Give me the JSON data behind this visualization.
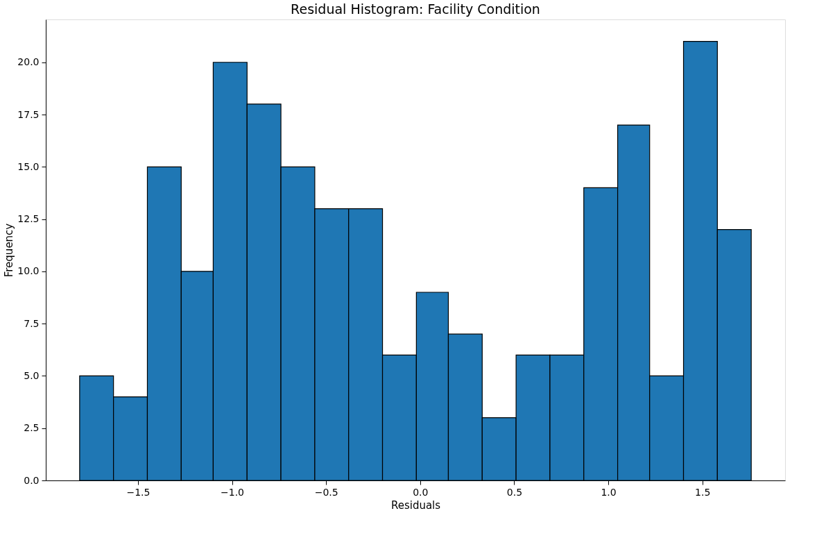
{
  "chart_data": {
    "type": "histogram",
    "title": "Residual Histogram: Facility Condition",
    "xlabel": "Residuals",
    "ylabel": "Frequency",
    "bins": [
      -1.81,
      -1.63,
      -1.45,
      -1.27,
      -1.1,
      -0.92,
      -0.74,
      -0.56,
      -0.38,
      -0.2,
      -0.02,
      0.15,
      0.33,
      0.51,
      0.69,
      0.87,
      1.05,
      1.22,
      1.4,
      1.58,
      1.76
    ],
    "values": [
      5,
      4,
      15,
      10,
      20,
      18,
      15,
      13,
      13,
      6,
      9,
      7,
      3,
      6,
      6,
      14,
      17,
      5,
      21,
      12
    ],
    "color": "#1f77b4",
    "xlim": [
      -1.99,
      1.94
    ],
    "xticks": [
      {
        "value": -1.5,
        "label": "−1.5"
      },
      {
        "value": -1.0,
        "label": "−1.0"
      },
      {
        "value": -0.5,
        "label": "−0.5"
      },
      {
        "value": 0.0,
        "label": "0.0"
      },
      {
        "value": 0.5,
        "label": "0.5"
      },
      {
        "value": 1.0,
        "label": "1.0"
      },
      {
        "value": 1.5,
        "label": "1.5"
      }
    ],
    "ylim": [
      0,
      22.05
    ],
    "yticks": [
      {
        "value": 0,
        "label": "0.0"
      },
      {
        "value": 2.5,
        "label": "2.5"
      },
      {
        "value": 5,
        "label": "5.0"
      },
      {
        "value": 7.5,
        "label": "7.5"
      },
      {
        "value": 10,
        "label": "10.0"
      },
      {
        "value": 12.5,
        "label": "12.5"
      },
      {
        "value": 15,
        "label": "15.0"
      },
      {
        "value": 17.5,
        "label": "17.5"
      },
      {
        "value": 20,
        "label": "20.0"
      }
    ],
    "grid": false
  }
}
